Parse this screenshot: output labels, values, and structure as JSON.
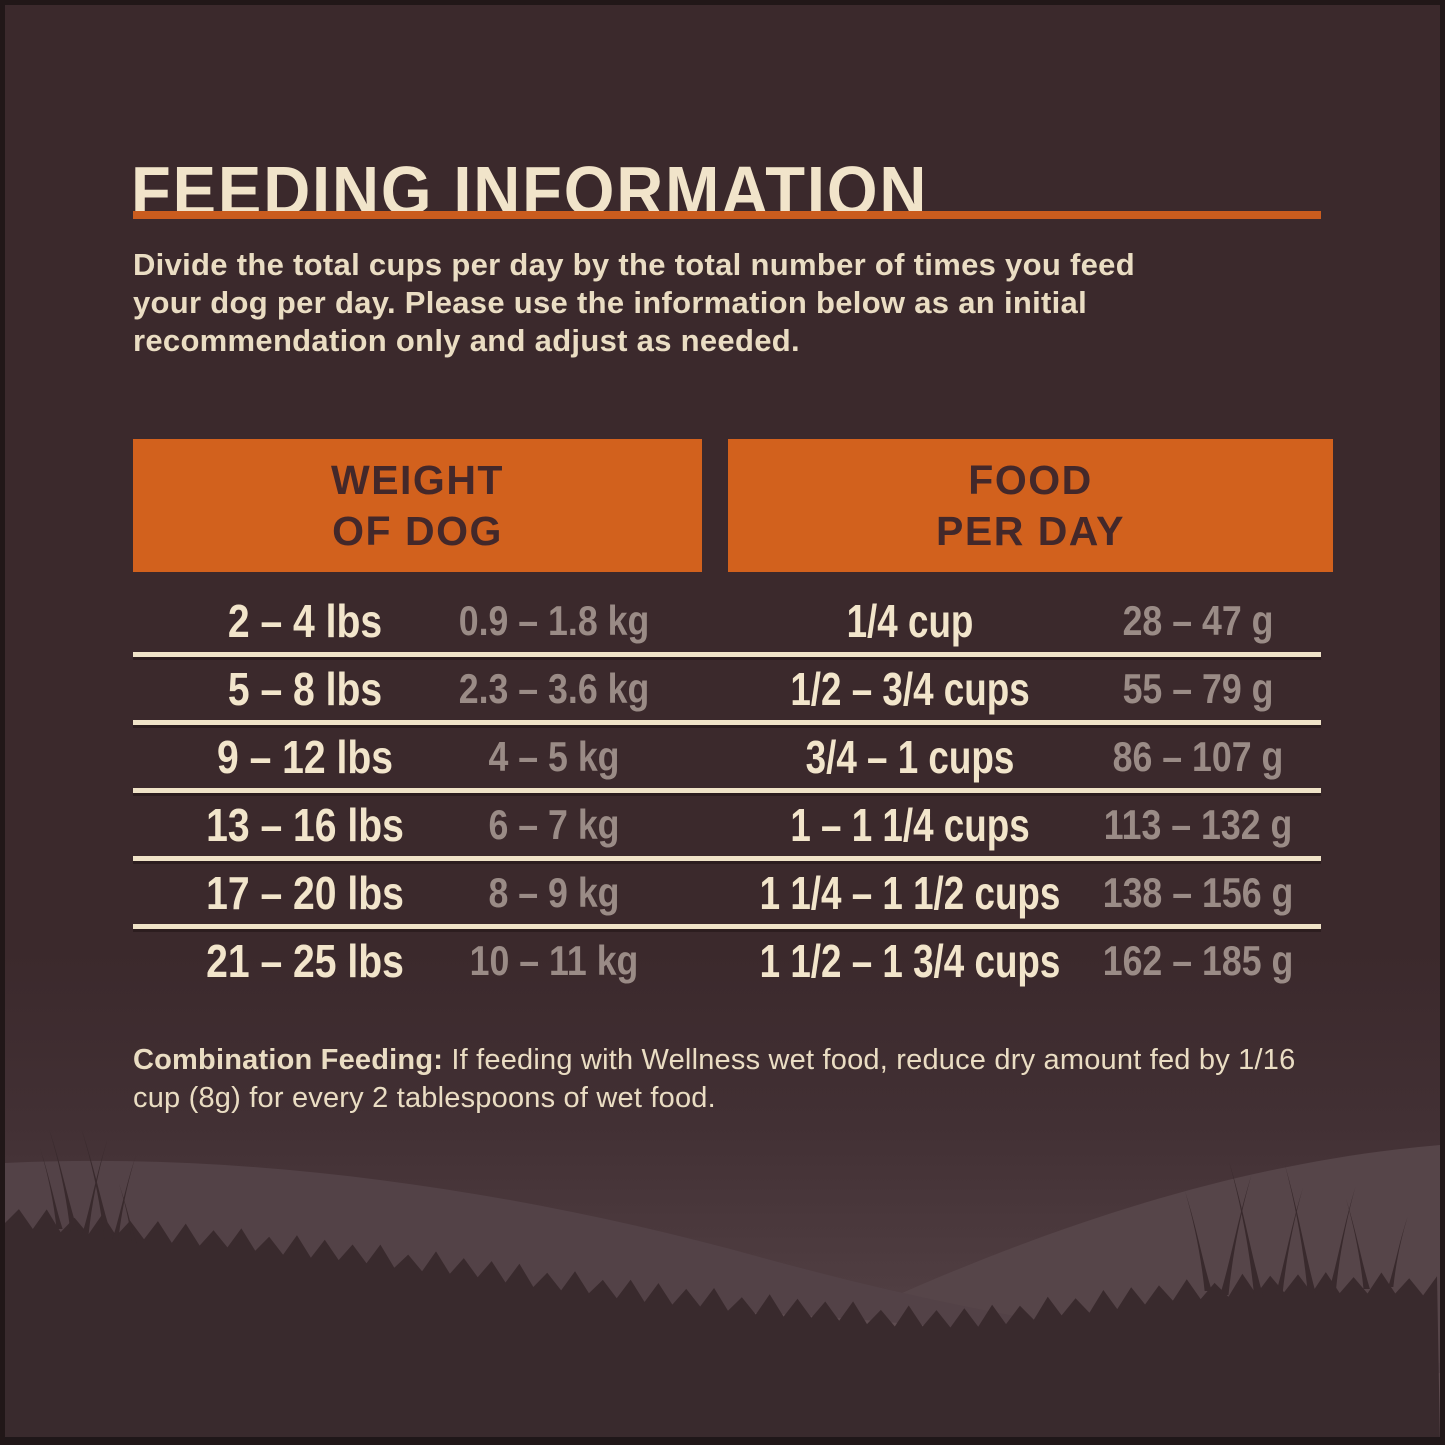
{
  "header": {
    "title": "FEEDING INFORMATION"
  },
  "intro": {
    "lines": [
      "Divide the total cups per day by the total number of times you feed",
      "your dog per day. Please use the information below as an initial",
      "recommendation only and adjust as needed."
    ]
  },
  "table": {
    "column_headers": [
      {
        "line1": "WEIGHT",
        "line2": "OF DOG"
      },
      {
        "line1": "FOOD",
        "line2": "PER DAY"
      }
    ],
    "rows": [
      {
        "lbs": "2 – 4 lbs",
        "kg": "0.9 – 1.8 kg",
        "cups": "1/4 cup",
        "grams": "28 – 47 g"
      },
      {
        "lbs": "5 – 8 lbs",
        "kg": "2.3 – 3.6 kg",
        "cups": "1/2 – 3/4 cups",
        "grams": "55 – 79 g"
      },
      {
        "lbs": "9 – 12 lbs",
        "kg": "4 – 5 kg",
        "cups": "3/4 – 1 cups",
        "grams": "86 – 107 g"
      },
      {
        "lbs": "13 – 16 lbs",
        "kg": "6 – 7 kg",
        "cups": "1 – 1 1/4 cups",
        "grams": "113 – 132 g"
      },
      {
        "lbs": "17 – 20 lbs",
        "kg": "8 – 9 kg",
        "cups": "1 1/4 – 1 1/2 cups",
        "grams": "138 – 156 g"
      },
      {
        "lbs": "21 – 25 lbs",
        "kg": "10 – 11 kg",
        "cups": "1 1/2 – 1 3/4 cups",
        "grams": "162 – 185 g"
      }
    ]
  },
  "note": {
    "lead": "Combination Feeding:",
    "line1_rest": " If feeding with Wellness wet food, reduce dry amount fed by 1/16",
    "line2": "cup (8g) for every 2 tablespoons of wet food."
  },
  "colors": {
    "background": "#3b292c",
    "accent_orange": "#d2611d",
    "cream_text": "#f1e4ca",
    "muted_gray_text": "#9a8b86",
    "header_text_dark": "#43282a",
    "separator_cream": "#f0e3c8"
  }
}
